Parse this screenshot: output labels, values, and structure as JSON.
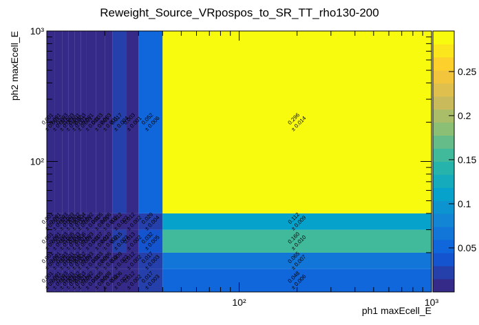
{
  "chart_data": {
    "type": "heatmap",
    "title": "Reweight_Source_VRpospos_to_SR_TT_rho130-200",
    "xlabel": "ph1 maxEcell_E",
    "ylabel": "ph2 maxEcell_E",
    "xscale": "log",
    "yscale": "log",
    "xlim": [
      10,
      1000
    ],
    "ylim": [
      10,
      1000
    ],
    "xticks": [
      {
        "value": 100,
        "label": "10²"
      },
      {
        "value": 1000,
        "label": "10³"
      }
    ],
    "yticks": [
      {
        "value": 100,
        "label": "10²"
      },
      {
        "value": 1000,
        "label": "10³"
      }
    ],
    "xminorticks": [
      20,
      30,
      40,
      50,
      60,
      70,
      80,
      90,
      200,
      300,
      400,
      500,
      600,
      700,
      800,
      900
    ],
    "yminorticks": [
      20,
      30,
      40,
      50,
      60,
      70,
      80,
      90,
      200,
      300,
      400,
      500,
      600,
      700,
      800,
      900
    ],
    "x_edges": [
      10,
      11,
      12,
      13,
      14,
      15,
      16,
      18,
      20,
      22,
      26,
      30,
      40,
      1000
    ],
    "y_edges": [
      10,
      15,
      20,
      30,
      40,
      1000
    ],
    "values": [
      [
        0.001,
        0.001,
        0.003,
        0.001,
        0.002,
        0.003,
        0.002,
        0.005,
        0.008,
        0.006,
        0.012,
        0.017,
        0.048
      ],
      [
        0.001,
        0.001,
        0.003,
        0.001,
        0.002,
        0.002,
        0.003,
        0.003,
        0.006,
        0.009,
        0.012,
        0.017,
        0.065
      ],
      [
        0.001,
        0.001,
        0.003,
        0.005,
        0.003,
        0.006,
        0.003,
        0.007,
        0.01,
        0.015,
        0.013,
        0.032,
        0.16
      ],
      [
        0.001,
        0.001,
        0.003,
        0.003,
        0.002,
        0.004,
        0.002,
        0.005,
        0.006,
        0.012,
        0.012,
        0.029,
        0.112
      ],
      [
        0.001,
        0.001,
        0.003,
        0.003,
        0.001,
        0.003,
        0.001,
        0.003,
        0.003,
        0.017,
        0.003,
        0.052,
        0.296
      ]
    ],
    "value_labels": [
      [
        "0.001",
        "0.001",
        "0.003",
        "0.001",
        "0.002",
        "0.003",
        "0.002",
        "0.005",
        "0.008",
        "0.006",
        "0.012",
        "0.017",
        "0.048"
      ],
      [
        "0.001",
        "0.001",
        "0.003",
        "0.001",
        "0.002",
        "0.002",
        "0.003",
        "0.003",
        "0.006",
        "0.009",
        "0.012",
        "0.017",
        "0.065"
      ],
      [
        "0.001",
        "0.001",
        "0.003",
        "0.005",
        "0.003",
        "0.006",
        "0.003",
        "0.007",
        "0.010",
        "0.015",
        "0.013",
        "0.032",
        "0.160"
      ],
      [
        "0.001",
        "0.001",
        "0.003",
        "0.003",
        "0.002",
        "0.004",
        "0.002",
        "0.005",
        "0.006",
        "0.012",
        "0.012",
        "0.029",
        "0.112"
      ],
      [
        "0.001",
        "0.001",
        "0.003",
        "0.003",
        "0.001",
        "0.003",
        "0.001",
        "0.003",
        "0.003",
        "0.017",
        "0.003",
        "0.052",
        "0.296"
      ]
    ],
    "error_labels": [
      [
        "± 0.001",
        "± 0.001",
        "± 0.001",
        "± 0.001",
        "± 0.001",
        "± 0.001",
        "± 0.001",
        "± 0.001",
        "± 0.002",
        "± 0.002",
        "± 0.002",
        "± 0.003",
        "± 0.006"
      ],
      [
        "± 0.001",
        "± 0.001",
        "± 0.001",
        "± 0.001",
        "± 0.001",
        "± 0.001",
        "± 0.001",
        "± 0.001",
        "± 0.002",
        "± 0.002",
        "± 0.002",
        "± 0.003",
        "± 0.007"
      ],
      [
        "± 0.001",
        "± 0.001",
        "± 0.001",
        "± 0.001",
        "± 0.001",
        "± 0.001",
        "± 0.001",
        "± 0.002",
        "± 0.002",
        "± 0.003",
        "± 0.002",
        "± 0.005",
        "± 0.010"
      ],
      [
        "± 0.001",
        "± 0.001",
        "± 0.001",
        "± 0.001",
        "± 0.001",
        "± 0.001",
        "± 0.001",
        "± 0.001",
        "± 0.002",
        "± 0.002",
        "± 0.002",
        "± 0.004",
        "± 0.009"
      ],
      [
        "± 0.001",
        "± 0.001",
        "± 0.001",
        "± 0.001",
        "± 0.001",
        "± 0.001",
        "± 0.001",
        "± 0.001",
        "± 0.001",
        "± 0.004",
        "± 0.001",
        "± 0.006",
        "± 0.014"
      ]
    ],
    "zlim": [
      0,
      0.296
    ],
    "zticks": [
      0.05,
      0.1,
      0.15,
      0.2,
      0.25
    ],
    "zlevels": 20,
    "colorscale": [
      "#352a87",
      "#0f5cdd",
      "#1481d6",
      "#06a4ca",
      "#2eb7a4",
      "#87bf77",
      "#d1bb59",
      "#fec832",
      "#f9fb0e"
    ]
  }
}
